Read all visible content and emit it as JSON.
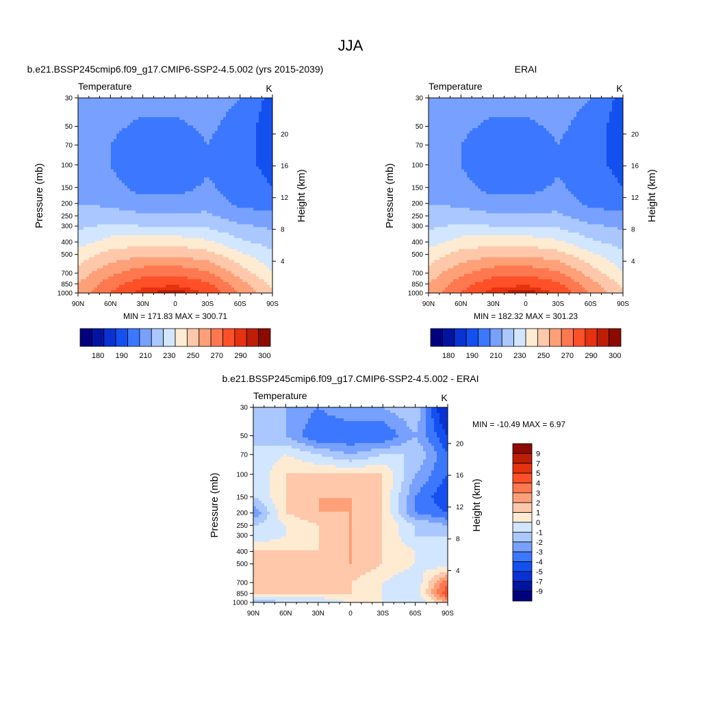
{
  "title": "JJA",
  "panels": [
    {
      "id": "model",
      "title": "b.e21.BSSP245cmip6.f09_g17.CMIP6-SSP2-4.5.002 (yrs 2015-2039)",
      "variable": "Temperature",
      "units": "K",
      "ylabel": "Pressure (mb)",
      "ylabel_right": "Height (km)",
      "stats": "MIN = 171.83  MAX = 300.71"
    },
    {
      "id": "obs",
      "title": "ERAI",
      "variable": "Temperature",
      "units": "K",
      "ylabel": "Pressure (mb)",
      "ylabel_right": "Height (km)",
      "stats": "MIN = 182.32  MAX = 301.23"
    },
    {
      "id": "diff",
      "title": "b.e21.BSSP245cmip6.f09_g17.CMIP6-SSP2-4.5.002 - ERAI",
      "variable": "Temperature",
      "units": "K",
      "ylabel": "Pressure (mb)",
      "ylabel_right": "Height (km)",
      "stats": "MIN = -10.49  MAX =   6.97"
    }
  ],
  "axes": {
    "pressure_ticks": [
      "30",
      "50",
      "70",
      "100",
      "150",
      "200",
      "250",
      "300",
      "400",
      "500",
      "700",
      "850",
      "1000"
    ],
    "pressure_values": [
      30,
      50,
      70,
      100,
      150,
      200,
      250,
      300,
      400,
      500,
      700,
      850,
      1000
    ],
    "height_ticks": [
      "20",
      "16",
      "12",
      "8",
      "4"
    ],
    "height_values": [
      20,
      16,
      12,
      8,
      4
    ],
    "lat_ticks": [
      "90N",
      "60N",
      "30N",
      "0",
      "30S",
      "60S",
      "90S"
    ]
  },
  "colorbars": {
    "abs": {
      "labels": [
        "180",
        "190",
        "210",
        "230",
        "250",
        "270",
        "290",
        "300"
      ],
      "colors": [
        "#00007f",
        "#0014a0",
        "#0a32d2",
        "#1450f0",
        "#3c78ff",
        "#78a0ff",
        "#aac8ff",
        "#d2e6ff",
        "#ffebd2",
        "#ffc8aa",
        "#ffa078",
        "#ff7850",
        "#ff5028",
        "#e6320f",
        "#be1e05",
        "#8c0a00"
      ]
    },
    "diff": {
      "labels": [
        "9",
        "7",
        "5",
        "4",
        "3",
        "2",
        "1",
        "0",
        "-1",
        "-2",
        "-3",
        "-4",
        "-5",
        "-7",
        "-9"
      ],
      "colors": [
        "#8c0a00",
        "#be1e05",
        "#e6320f",
        "#ff5028",
        "#ff7850",
        "#ffa078",
        "#ffc8aa",
        "#ffebd2",
        "#d2e6ff",
        "#aac8ff",
        "#78a0ff",
        "#3c78ff",
        "#1450f0",
        "#0a32d2",
        "#0014a0",
        "#00007f"
      ]
    }
  },
  "chart_data": [
    {
      "type": "heatmap",
      "title": "b.e21.BSSP245cmip6.f09_g17.CMIP6-SSP2-4.5.002 (yrs 2015-2039)",
      "xlabel": "",
      "ylabel": "Pressure (mb)",
      "y2label": "Height (km)",
      "units": "K",
      "x": [
        "90N",
        "60N",
        "30N",
        "0",
        "30S",
        "60S",
        "90S"
      ],
      "y": [
        30,
        50,
        70,
        100,
        150,
        200,
        250,
        300,
        400,
        500,
        700,
        850,
        1000
      ],
      "z": [
        [
          218,
          214,
          214,
          214,
          214,
          210,
          196
        ],
        [
          216,
          212,
          208,
          208,
          212,
          206,
          194
        ],
        [
          216,
          210,
          204,
          204,
          210,
          204,
          196
        ],
        [
          216,
          210,
          200,
          200,
          208,
          202,
          198
        ],
        [
          218,
          214,
          206,
          206,
          212,
          204,
          200
        ],
        [
          220,
          218,
          214,
          214,
          216,
          208,
          206
        ],
        [
          224,
          224,
          222,
          222,
          222,
          214,
          212
        ],
        [
          228,
          232,
          230,
          230,
          228,
          222,
          218
        ],
        [
          236,
          244,
          246,
          246,
          242,
          232,
          226
        ],
        [
          244,
          254,
          258,
          258,
          254,
          242,
          232
        ],
        [
          254,
          268,
          276,
          278,
          272,
          256,
          240
        ],
        [
          260,
          276,
          286,
          288,
          282,
          264,
          248
        ],
        [
          264,
          280,
          294,
          300,
          288,
          268,
          252
        ]
      ],
      "min": 171.83,
      "max": 300.71,
      "levels": [
        180,
        185,
        190,
        200,
        210,
        220,
        230,
        240,
        250,
        260,
        270,
        280,
        290,
        295,
        300
      ],
      "ylim": [
        1000,
        30
      ]
    },
    {
      "type": "heatmap",
      "title": "ERAI",
      "xlabel": "",
      "ylabel": "Pressure (mb)",
      "y2label": "Height (km)",
      "units": "K",
      "x": [
        "90N",
        "60N",
        "30N",
        "0",
        "30S",
        "60S",
        "90S"
      ],
      "y": [
        30,
        50,
        70,
        100,
        150,
        200,
        250,
        300,
        400,
        500,
        700,
        850,
        1000
      ],
      "z": [
        [
          218,
          214,
          214,
          214,
          214,
          210,
          196
        ],
        [
          216,
          212,
          208,
          208,
          212,
          206,
          194
        ],
        [
          216,
          210,
          204,
          204,
          210,
          204,
          196
        ],
        [
          216,
          210,
          200,
          200,
          208,
          202,
          198
        ],
        [
          218,
          214,
          206,
          206,
          212,
          204,
          200
        ],
        [
          220,
          218,
          214,
          214,
          216,
          208,
          206
        ],
        [
          224,
          224,
          222,
          222,
          222,
          214,
          212
        ],
        [
          228,
          232,
          230,
          230,
          228,
          222,
          218
        ],
        [
          236,
          244,
          246,
          246,
          242,
          232,
          226
        ],
        [
          244,
          254,
          258,
          258,
          254,
          242,
          232
        ],
        [
          254,
          268,
          276,
          278,
          272,
          256,
          240
        ],
        [
          260,
          276,
          286,
          288,
          282,
          264,
          248
        ],
        [
          264,
          280,
          294,
          300,
          288,
          268,
          252
        ]
      ],
      "min": 182.32,
      "max": 301.23,
      "levels": [
        180,
        185,
        190,
        200,
        210,
        220,
        230,
        240,
        250,
        260,
        270,
        280,
        290,
        295,
        300
      ],
      "ylim": [
        1000,
        30
      ]
    },
    {
      "type": "heatmap",
      "title": "b.e21.BSSP245cmip6.f09_g17.CMIP6-SSP2-4.5.002 - ERAI",
      "xlabel": "",
      "ylabel": "Pressure (mb)",
      "y2label": "Height (km)",
      "units": "K",
      "x": [
        "90N",
        "60N",
        "30N",
        "0",
        "30S",
        "60S",
        "90S"
      ],
      "y": [
        30,
        50,
        70,
        100,
        150,
        200,
        250,
        300,
        400,
        500,
        700,
        850,
        1000
      ],
      "z": [
        [
          -2,
          -2,
          -3,
          -2,
          -2,
          -1,
          -7
        ],
        [
          -1,
          -2,
          -4,
          -4,
          -4,
          -2,
          -5
        ],
        [
          -1,
          0,
          -1,
          -2,
          -1,
          -1,
          -4
        ],
        [
          -1,
          1,
          1,
          1,
          1,
          -2,
          -4
        ],
        [
          -1,
          1,
          2,
          2,
          1,
          -3,
          -5
        ],
        [
          -3,
          1,
          2,
          2,
          1,
          -3,
          -4
        ],
        [
          -1,
          0,
          1,
          2,
          1,
          -1,
          -2
        ],
        [
          -1,
          0,
          1,
          2,
          1,
          -1,
          -1
        ],
        [
          1,
          1,
          1,
          2,
          1,
          0,
          -1
        ],
        [
          1,
          2,
          1,
          2,
          1,
          0,
          -1
        ],
        [
          1,
          1,
          1,
          1,
          0,
          -1,
          4
        ],
        [
          1,
          1,
          1,
          1,
          0,
          -1,
          5
        ],
        [
          -2,
          -1,
          -1,
          0,
          0,
          -1,
          2
        ]
      ],
      "min": -10.49,
      "max": 6.97,
      "levels": [
        -9,
        -7,
        -5,
        -4,
        -3,
        -2,
        -1,
        0,
        1,
        2,
        3,
        4,
        5,
        7,
        9
      ],
      "ylim": [
        1000,
        30
      ]
    }
  ]
}
